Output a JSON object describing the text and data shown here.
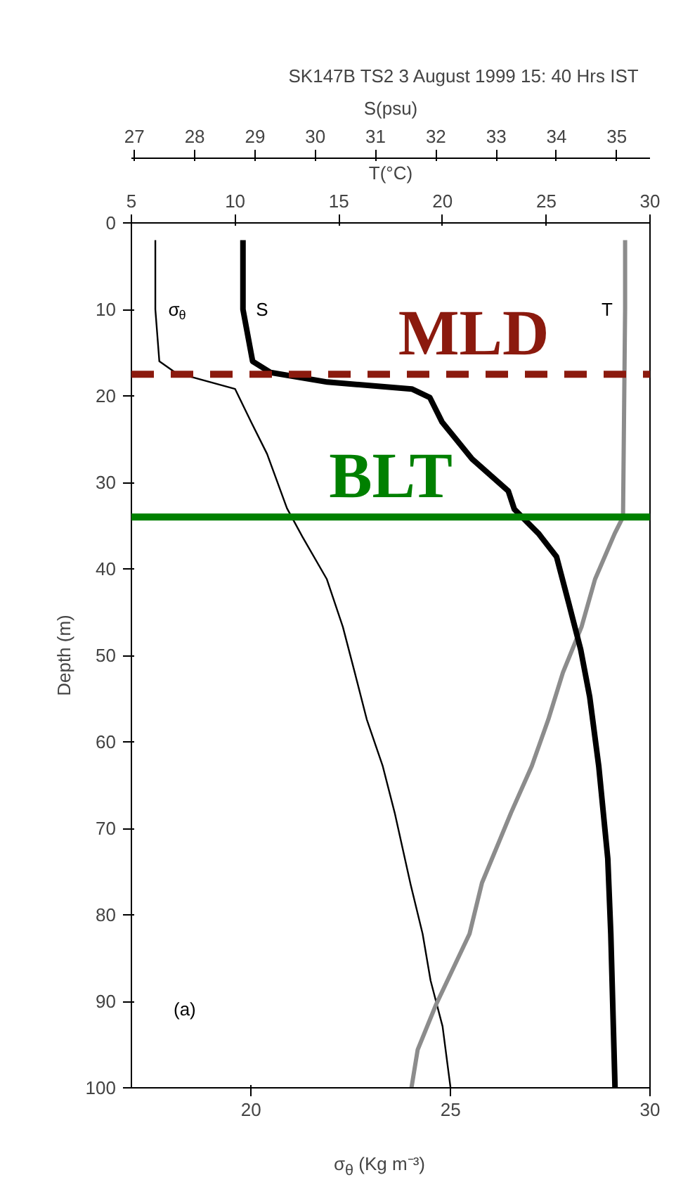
{
  "chart_data": [
    {
      "type": "line",
      "title": "SK147B TS2   3 August 1999 15: 40 Hrs IST",
      "xlabel": "σ$_{θ}$ (Kg m⁻³)",
      "ylabel": "Depth (m)",
      "x2label": "T(°C)",
      "xlim": [
        17,
        30
      ],
      "xticks": [
        20,
        25,
        30
      ],
      "x2lim": [
        5,
        30
      ],
      "x2ticks": [
        5,
        10,
        15,
        20,
        25,
        30
      ],
      "ylim": [
        100,
        0
      ],
      "yticks": [
        0,
        10,
        20,
        30,
        40,
        50,
        60,
        70,
        80,
        90,
        100
      ],
      "series": [
        {
          "name": "σ$_{θ}$",
          "color": "#000000",
          "x": [
            17.6,
            17.6,
            17.7,
            18.1,
            19.6,
            20.0,
            20.4,
            20.9,
            21.3,
            21.9,
            22.3,
            22.6,
            22.9,
            23.3,
            23.6,
            24.0,
            24.3,
            24.5,
            24.8,
            25.0
          ],
          "values": [
            2,
            10,
            16,
            17.3,
            19.2,
            23,
            26.7,
            33,
            36.4,
            41.2,
            46.7,
            52,
            57.4,
            62.8,
            68.2,
            76.5,
            82.2,
            87.6,
            92.9,
            100
          ]
        },
        {
          "name": "T",
          "axis": "x2",
          "color": "#8c8c8c",
          "x": [
            28.8,
            28.8,
            28.7,
            28.3,
            27.35,
            26.7,
            25.8,
            25.1,
            24.3,
            23.3,
            22.75,
            21.9,
            21.3,
            19.7,
            18.8,
            18.5
          ],
          "values": [
            2,
            10,
            34,
            35.9,
            41.2,
            46.7,
            52,
            57.4,
            62.8,
            68.2,
            71.4,
            76.3,
            82.2,
            90.3,
            95.6,
            100
          ]
        }
      ],
      "ref_lines": [
        {
          "axis": "y",
          "value": 17.5,
          "label": "MLD",
          "color": "#8b1a0e",
          "line_style": "dashed"
        },
        {
          "axis": "y",
          "value": 34,
          "label": "BLT",
          "color": "#008000",
          "line_style": "solid"
        }
      ],
      "annotations": [
        "(a)"
      ],
      "grid": false
    },
    {
      "type": "line",
      "xlabel": "S(psu)",
      "xlim": [
        26.95,
        35.55
      ],
      "xticks": [
        27,
        28,
        29,
        30,
        31,
        32,
        33,
        34,
        35
      ],
      "ylim": [
        100,
        0
      ],
      "tick_labels": "x",
      "series": [
        {
          "name": "S",
          "color": "#000000",
          "x": [
            28.8,
            28.8,
            28.96,
            29.26,
            30.2,
            31.6,
            31.9,
            32.1,
            32.6,
            33.2,
            33.3,
            33.7,
            34.0,
            34.2,
            34.4,
            34.55,
            34.7,
            34.85,
            34.9,
            34.97
          ],
          "values": [
            2,
            10,
            16,
            17.3,
            18.4,
            19.2,
            20.2,
            23,
            27.3,
            31,
            33.1,
            35.9,
            38.6,
            43.9,
            49.3,
            54.8,
            62.8,
            73.5,
            82.2,
            100
          ]
        }
      ]
    }
  ]
}
